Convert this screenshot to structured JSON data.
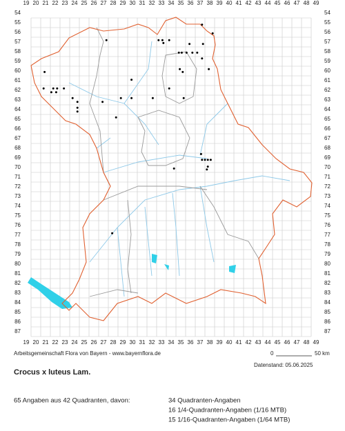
{
  "header": {
    "credit": "Arbeitsgemeinschaft Flora von Bayern - www.bayernflora.de",
    "scale_start": "0",
    "scale_end": "50 km",
    "date": "Datenstand: 05.06.2025",
    "title": "Crocus x luteus Lam."
  },
  "summary": {
    "total": "65 Angaben aus 42 Quadranten, davon:",
    "lines": [
      "34 Quadranten-Angaben",
      "16 1/4-Quadranten-Angaben (1/16 MTB)",
      "15 1/16-Quadranten-Angaben (1/64 MTB)"
    ]
  },
  "columns": [
    19,
    20,
    21,
    22,
    23,
    24,
    25,
    26,
    27,
    28,
    29,
    30,
    31,
    32,
    33,
    34,
    35,
    36,
    37,
    38,
    39,
    40,
    41,
    42,
    43,
    44,
    45,
    46,
    47,
    48,
    49
  ],
  "rows": [
    54,
    55,
    56,
    57,
    58,
    59,
    60,
    61,
    62,
    63,
    64,
    65,
    66,
    67,
    68,
    69,
    70,
    71,
    72,
    73,
    74,
    75,
    76,
    77,
    78,
    79,
    80,
    81,
    82,
    83,
    84,
    85,
    86,
    87
  ],
  "dots": [
    [
      37.2,
      55.2
    ],
    [
      38.3,
      56.1
    ],
    [
      27.3,
      56.8
    ],
    [
      32.7,
      56.8
    ],
    [
      33.1,
      56.8
    ],
    [
      33.8,
      56.8
    ],
    [
      33.2,
      57.1
    ],
    [
      35.9,
      57.2
    ],
    [
      37.3,
      57.2
    ],
    [
      34.8,
      58.1
    ],
    [
      35.1,
      58.1
    ],
    [
      35.6,
      58.1
    ],
    [
      36.2,
      58.1
    ],
    [
      36.7,
      58.1
    ],
    [
      37.2,
      58.7
    ],
    [
      20.9,
      60.1
    ],
    [
      34.9,
      59.8
    ],
    [
      35.2,
      60.1
    ],
    [
      37.9,
      59.8
    ],
    [
      29.9,
      60.9
    ],
    [
      20.8,
      61.8
    ],
    [
      21.8,
      61.8
    ],
    [
      22.2,
      61.8
    ],
    [
      22.9,
      61.8
    ],
    [
      33.8,
      61.8
    ],
    [
      21.6,
      62.2
    ],
    [
      22.1,
      62.2
    ],
    [
      23.8,
      62.8
    ],
    [
      24.3,
      63.2
    ],
    [
      28.8,
      62.8
    ],
    [
      29.9,
      62.8
    ],
    [
      32.1,
      62.8
    ],
    [
      35.3,
      62.8
    ],
    [
      24.3,
      63.8
    ],
    [
      24.3,
      64.2
    ],
    [
      26.9,
      63.2
    ],
    [
      28.3,
      64.8
    ],
    [
      37.1,
      68.6
    ],
    [
      37.2,
      69.2
    ],
    [
      37.5,
      69.2
    ],
    [
      37.8,
      69.2
    ],
    [
      38.1,
      69.2
    ],
    [
      37.8,
      69.9
    ],
    [
      37.7,
      70.2
    ],
    [
      34.3,
      70.1
    ],
    [
      27.9,
      76.8
    ]
  ]
}
